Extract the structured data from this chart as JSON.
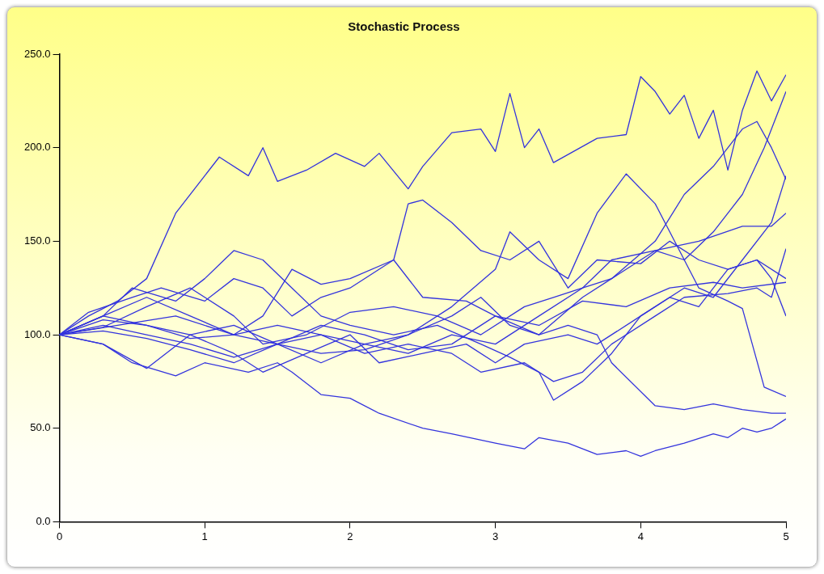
{
  "chart_data": {
    "type": "line",
    "title": "Stochastic Process",
    "xlim": [
      0,
      5
    ],
    "xticks": [
      0,
      1,
      2,
      3,
      4,
      5
    ],
    "ylim": [
      0,
      250
    ],
    "yticks": [
      {
        "value": 0,
        "label": "0.0"
      },
      {
        "value": 50,
        "label": "50.0"
      },
      {
        "value": 100,
        "label": "100.0"
      },
      {
        "value": 150,
        "label": "150.0"
      },
      {
        "value": 200,
        "label": "200.0"
      },
      {
        "value": 250,
        "label": "250.0"
      }
    ],
    "grid": false,
    "legend": false,
    "line_style": "solid",
    "series": [
      {
        "color": "#3333dd",
        "x": [
          0,
          0.2,
          0.4,
          0.6,
          0.8,
          1.0,
          1.1,
          1.3,
          1.4,
          1.5,
          1.7,
          1.9,
          2.1,
          2.2,
          2.4,
          2.5,
          2.7,
          2.9,
          3.0,
          3.1,
          3.2,
          3.3,
          3.4,
          3.7,
          3.9,
          4.0,
          4.1,
          4.2,
          4.3,
          4.4,
          4.5,
          4.6,
          4.7,
          4.8,
          4.9,
          5
        ],
        "values": [
          100,
          110,
          118,
          130,
          165,
          185,
          195,
          185,
          200,
          182,
          188,
          197,
          190,
          197,
          178,
          190,
          208,
          210,
          198,
          229,
          200,
          210,
          192,
          205,
          207,
          238,
          230,
          218,
          228,
          205,
          220,
          188,
          220,
          241,
          225,
          239
        ]
      },
      {
        "color": "#3333dd",
        "x": [
          0,
          0.3,
          0.5,
          0.8,
          1.0,
          1.3,
          1.5,
          1.6,
          1.8,
          2.0,
          2.2,
          2.5,
          2.7,
          3.0,
          3.2,
          3.3,
          3.5,
          3.7,
          3.9,
          4.0,
          4.1,
          4.3,
          4.5,
          4.6,
          4.7,
          4.8,
          4.9,
          5
        ],
        "values": [
          100,
          95,
          85,
          78,
          85,
          80,
          85,
          80,
          68,
          66,
          58,
          50,
          47,
          42,
          39,
          45,
          42,
          36,
          38,
          35,
          38,
          42,
          47,
          45,
          50,
          48,
          50,
          55
        ]
      },
      {
        "color": "#3333dd",
        "x": [
          0,
          0.2,
          0.5,
          0.7,
          1.0,
          1.2,
          1.4,
          1.6,
          1.8,
          2.0,
          2.3,
          2.4,
          2.5,
          2.7,
          2.9,
          3.1,
          3.3,
          3.5,
          3.7,
          4.0,
          4.2,
          4.4,
          4.6,
          4.8,
          4.9,
          5
        ],
        "values": [
          100,
          112,
          120,
          125,
          118,
          130,
          125,
          110,
          120,
          125,
          140,
          170,
          172,
          160,
          145,
          140,
          150,
          125,
          140,
          138,
          150,
          140,
          135,
          140,
          130,
          110
        ]
      },
      {
        "color": "#3333dd",
        "x": [
          0,
          0.3,
          0.6,
          0.9,
          1.2,
          1.5,
          1.8,
          2.1,
          2.4,
          2.7,
          3.0,
          3.1,
          3.3,
          3.5,
          3.7,
          3.9,
          4.1,
          4.2,
          4.4,
          4.6,
          4.7,
          4.85,
          5
        ],
        "values": [
          100,
          105,
          100,
          95,
          88,
          95,
          90,
          92,
          100,
          115,
          135,
          155,
          140,
          130,
          165,
          186,
          170,
          155,
          125,
          118,
          114,
          72,
          67
        ]
      },
      {
        "color": "#3333dd",
        "x": [
          0,
          0.3,
          0.6,
          0.9,
          1.2,
          1.5,
          1.8,
          2.1,
          2.4,
          2.7,
          2.9,
          3.1,
          3.3,
          3.5,
          3.7,
          3.8,
          4.1,
          4.3,
          4.5,
          4.7,
          4.9,
          5
        ],
        "values": [
          100,
          108,
          105,
          100,
          105,
          95,
          100,
          95,
          100,
          110,
          120,
          105,
          100,
          105,
          100,
          85,
          62,
          60,
          63,
          60,
          58,
          58
        ]
      },
      {
        "color": "#3333dd",
        "x": [
          0,
          0.3,
          0.6,
          0.9,
          1.2,
          1.4,
          1.6,
          1.8,
          2.0,
          2.3,
          2.5,
          2.8,
          3.0,
          3.3,
          3.6,
          3.8,
          4.1,
          4.3,
          4.5,
          4.7,
          4.8,
          4.9,
          5
        ],
        "values": [
          100,
          110,
          120,
          110,
          100,
          110,
          135,
          127,
          130,
          140,
          120,
          118,
          110,
          100,
          120,
          130,
          150,
          175,
          190,
          210,
          214,
          200,
          183
        ]
      },
      {
        "color": "#3333dd",
        "x": [
          0,
          0.4,
          0.8,
          1.2,
          1.5,
          1.8,
          2.1,
          2.4,
          2.7,
          3.0,
          3.3,
          3.6,
          3.8,
          4.1,
          4.3,
          4.5,
          4.7,
          4.85,
          4.95,
          5
        ],
        "values": [
          100,
          105,
          110,
          100,
          95,
          85,
          95,
          90,
          100,
          95,
          110,
          125,
          130,
          145,
          140,
          155,
          175,
          200,
          220,
          230
        ]
      },
      {
        "color": "#3333dd",
        "x": [
          0,
          0.3,
          0.6,
          0.9,
          1.2,
          1.4,
          1.7,
          2.0,
          2.2,
          2.5,
          2.8,
          3.0,
          3.2,
          3.5,
          3.7,
          4.0,
          4.3,
          4.5,
          4.7,
          4.9,
          5
        ],
        "values": [
          100,
          95,
          82,
          100,
          90,
          80,
          90,
          100,
          85,
          90,
          95,
          85,
          95,
          100,
          95,
          110,
          125,
          120,
          140,
          160,
          185
        ]
      },
      {
        "color": "#3333dd",
        "x": [
          0,
          0.3,
          0.6,
          0.9,
          1.2,
          1.4,
          1.7,
          2.0,
          2.3,
          2.6,
          2.9,
          3.2,
          3.4,
          3.6,
          3.8,
          4.1,
          4.4,
          4.7,
          4.9,
          5
        ],
        "values": [
          100,
          104,
          115,
          125,
          110,
          95,
          100,
          112,
          115,
          110,
          100,
          115,
          120,
          125,
          140,
          145,
          150,
          158,
          158,
          165
        ]
      },
      {
        "color": "#3333dd",
        "x": [
          0,
          0.3,
          0.6,
          0.9,
          1.2,
          1.5,
          1.8,
          2.1,
          2.4,
          2.7,
          2.9,
          3.2,
          3.4,
          3.6,
          3.8,
          4.1,
          4.3,
          4.6,
          4.8,
          4.9,
          5
        ],
        "values": [
          100,
          110,
          105,
          98,
          100,
          105,
          100,
          90,
          95,
          90,
          80,
          85,
          75,
          80,
          95,
          110,
          120,
          122,
          125,
          120,
          146
        ]
      },
      {
        "color": "#3333dd",
        "x": [
          0,
          0.3,
          0.5,
          0.8,
          1.0,
          1.2,
          1.4,
          1.6,
          1.8,
          2.0,
          2.3,
          2.6,
          2.9,
          3.1,
          3.3,
          3.4,
          3.6,
          3.8,
          4.0,
          4.2,
          4.4,
          4.6,
          4.8,
          5
        ],
        "values": [
          100,
          110,
          125,
          118,
          130,
          145,
          140,
          125,
          110,
          105,
          100,
          105,
          95,
          88,
          80,
          65,
          75,
          90,
          110,
          120,
          115,
          135,
          140,
          130
        ]
      },
      {
        "color": "#3333dd",
        "x": [
          0,
          0.3,
          0.6,
          0.9,
          1.2,
          1.5,
          1.8,
          2.1,
          2.4,
          2.7,
          3.0,
          3.3,
          3.6,
          3.9,
          4.2,
          4.5,
          4.7,
          5
        ],
        "values": [
          100,
          102,
          98,
          92,
          85,
          95,
          105,
          100,
          92,
          95,
          110,
          105,
          118,
          115,
          125,
          128,
          125,
          128
        ]
      }
    ]
  }
}
